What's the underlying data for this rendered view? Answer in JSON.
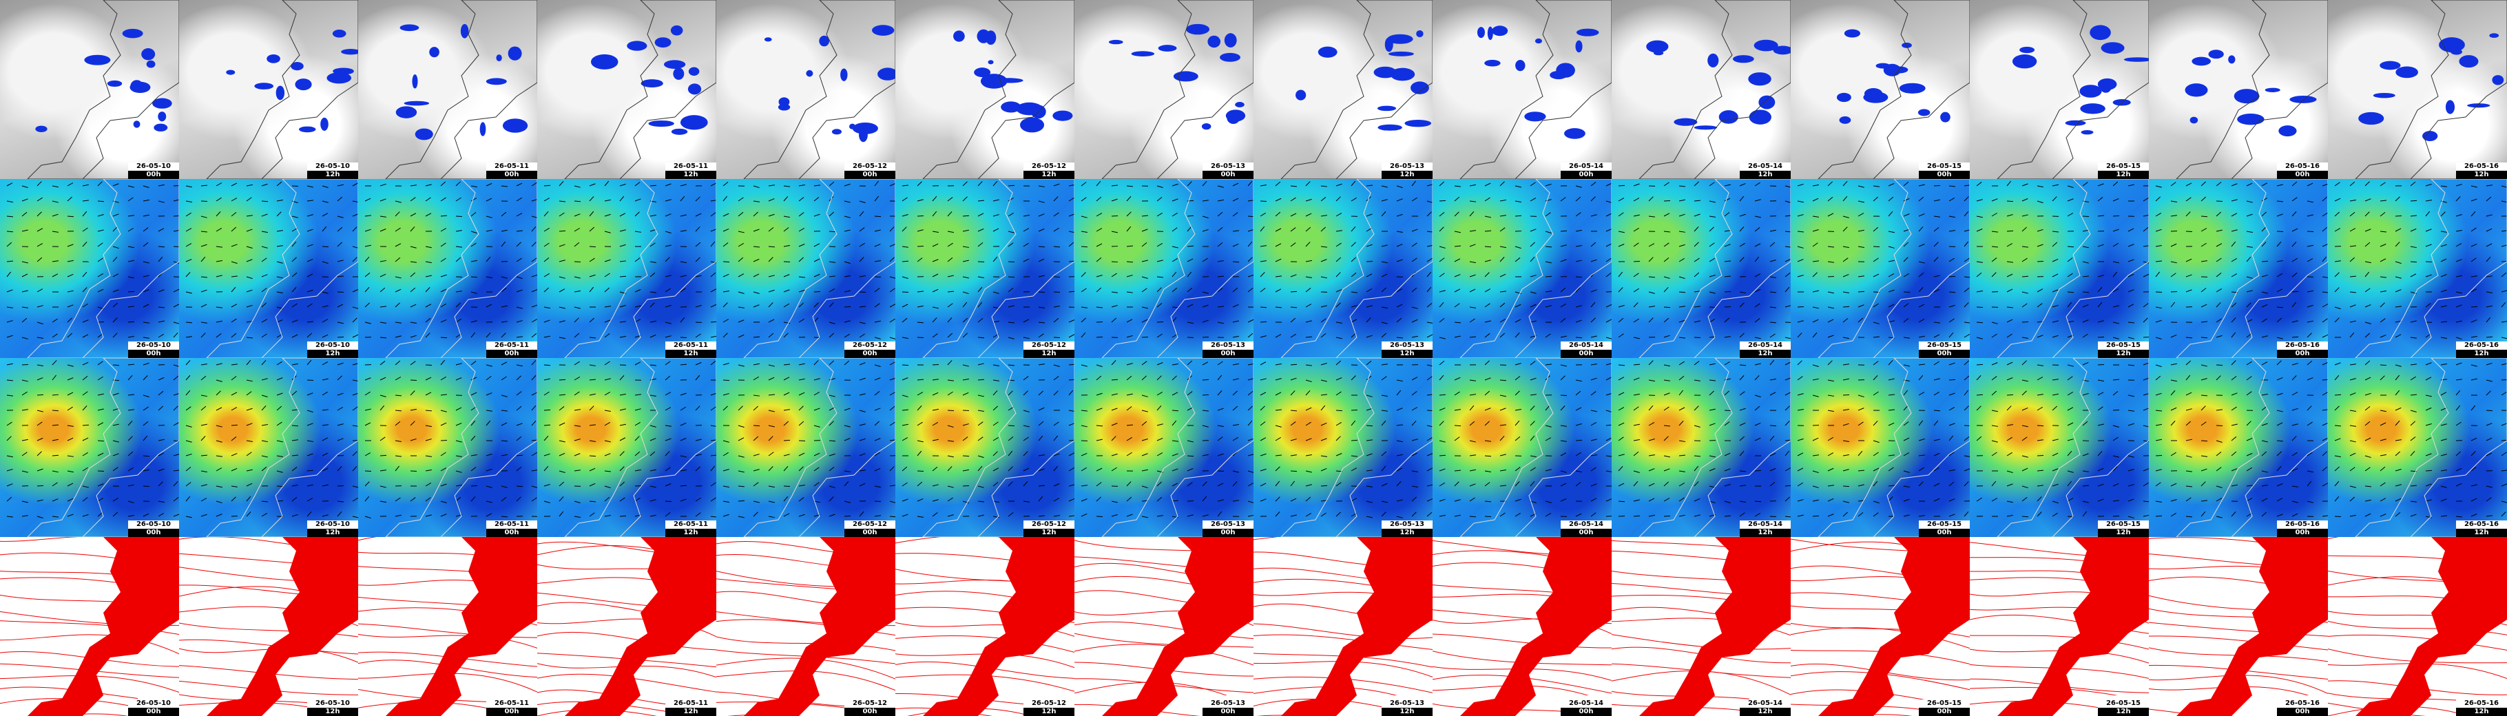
{
  "rows": [
    {
      "cells": [
        {
          "date": "26-05-10",
          "time": "00h"
        },
        {
          "date": "26-05-10",
          "time": "12h"
        },
        {
          "date": "26-05-11",
          "time": "00h"
        },
        {
          "date": "26-05-11",
          "time": "12h"
        },
        {
          "date": "26-05-12",
          "time": "00h"
        },
        {
          "date": "26-05-12",
          "time": "12h"
        },
        {
          "date": "26-05-13",
          "time": "00h"
        },
        {
          "date": "26-05-13",
          "time": "12h"
        },
        {
          "date": "26-05-14",
          "time": "00h"
        },
        {
          "date": "26-05-14",
          "time": "12h"
        },
        {
          "date": "26-05-15",
          "time": "00h"
        },
        {
          "date": "26-05-15",
          "time": "12h"
        },
        {
          "date": "26-05-16",
          "time": "00h"
        },
        {
          "date": "26-05-16",
          "time": "12h"
        }
      ]
    },
    {
      "cells": [
        {
          "date": "26-05-10",
          "time": "00h"
        },
        {
          "date": "26-05-10",
          "time": "12h"
        },
        {
          "date": "26-05-11",
          "time": "00h"
        },
        {
          "date": "26-05-11",
          "time": "12h"
        },
        {
          "date": "26-05-12",
          "time": "00h"
        },
        {
          "date": "26-05-12",
          "time": "12h"
        },
        {
          "date": "26-05-13",
          "time": "00h"
        },
        {
          "date": "26-05-13",
          "time": "12h"
        },
        {
          "date": "26-05-14",
          "time": "00h"
        },
        {
          "date": "26-05-14",
          "time": "12h"
        },
        {
          "date": "26-05-15",
          "time": "00h"
        },
        {
          "date": "26-05-15",
          "time": "12h"
        },
        {
          "date": "26-05-16",
          "time": "00h"
        },
        {
          "date": "26-05-16",
          "time": "12h"
        }
      ]
    },
    {
      "cells": [
        {
          "date": "26-05-10",
          "time": "00h"
        },
        {
          "date": "26-05-10",
          "time": "12h"
        },
        {
          "date": "26-05-11",
          "time": "00h"
        },
        {
          "date": "26-05-11",
          "time": "12h"
        },
        {
          "date": "26-05-12",
          "time": "00h"
        },
        {
          "date": "26-05-12",
          "time": "12h"
        },
        {
          "date": "26-05-13",
          "time": "00h"
        },
        {
          "date": "26-05-13",
          "time": "12h"
        },
        {
          "date": "26-05-14",
          "time": "00h"
        },
        {
          "date": "26-05-14",
          "time": "12h"
        },
        {
          "date": "26-05-15",
          "time": "00h"
        },
        {
          "date": "26-05-15",
          "time": "12h"
        },
        {
          "date": "26-05-16",
          "time": "00h"
        },
        {
          "date": "26-05-16",
          "time": "12h"
        }
      ]
    },
    {
      "cells": [
        {
          "date": "26-05-10",
          "time": "00h"
        },
        {
          "date": "26-05-10",
          "time": "12h"
        },
        {
          "date": "26-05-11",
          "time": "00h"
        },
        {
          "date": "26-05-11",
          "time": "12h"
        },
        {
          "date": "26-05-12",
          "time": "00h"
        },
        {
          "date": "26-05-12",
          "time": "12h"
        },
        {
          "date": "26-05-13",
          "time": "00h"
        },
        {
          "date": "26-05-13",
          "time": "12h"
        },
        {
          "date": "26-05-14",
          "time": "00h"
        },
        {
          "date": "26-05-14",
          "time": "12h"
        },
        {
          "date": "26-05-15",
          "time": "00h"
        },
        {
          "date": "26-05-15",
          "time": "12h"
        },
        {
          "date": "26-05-16",
          "time": "00h"
        },
        {
          "date": "26-05-16",
          "time": "12h"
        }
      ]
    }
  ]
}
